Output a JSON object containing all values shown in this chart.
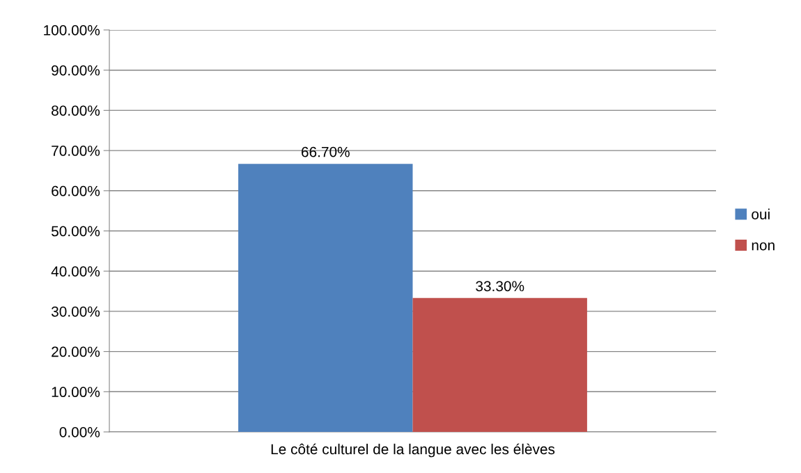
{
  "chart_data": {
    "type": "bar",
    "categories": [
      "Le côté culturel de la langue avec les élèves"
    ],
    "series": [
      {
        "name": "oui",
        "color": "#4f81bd",
        "values": [
          66.7
        ],
        "value_labels": [
          "66.70%"
        ]
      },
      {
        "name": "non",
        "color": "#c0504d",
        "values": [
          33.3
        ],
        "value_labels": [
          "33.30%"
        ]
      }
    ],
    "ylim": [
      0,
      100
    ],
    "yticks": [
      {
        "value": 0,
        "label": "0.00%"
      },
      {
        "value": 10,
        "label": "10.00%"
      },
      {
        "value": 20,
        "label": "20.00%"
      },
      {
        "value": 30,
        "label": "30.00%"
      },
      {
        "value": 40,
        "label": "40.00%"
      },
      {
        "value": 50,
        "label": "50.00%"
      },
      {
        "value": 60,
        "label": "60.00%"
      },
      {
        "value": 70,
        "label": "70.00%"
      },
      {
        "value": 80,
        "label": "80.00%"
      },
      {
        "value": 90,
        "label": "90.00%"
      },
      {
        "value": 100,
        "label": "100.00%"
      }
    ],
    "grid": "y",
    "legend": "right"
  }
}
